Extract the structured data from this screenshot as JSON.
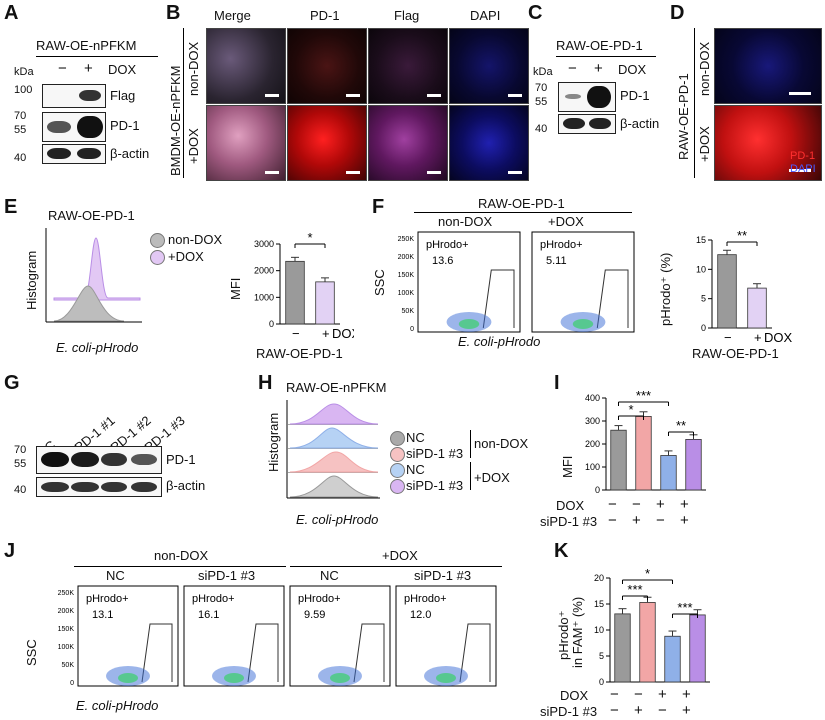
{
  "panels": [
    "A",
    "B",
    "C",
    "D",
    "E",
    "F",
    "G",
    "H",
    "I",
    "J",
    "K"
  ],
  "A": {
    "title": "RAW-OE-nPFKM",
    "kda": "kDa",
    "minus": "−",
    "plus": "+",
    "dox": "DOX",
    "mw": [
      "100",
      "70",
      "55",
      "40"
    ],
    "labels": [
      "Flag",
      "PD-1",
      "β-actin"
    ]
  },
  "B": {
    "cols": [
      "Merge",
      "PD-1",
      "Flag",
      "DAPI"
    ],
    "rowlabel": "BMDM-OE-nPFKM",
    "rows": [
      "non-DOX",
      "+DOX"
    ]
  },
  "C": {
    "title": "RAW-OE-PD-1",
    "kda": "kDa",
    "minus": "−",
    "plus": "+",
    "dox": "DOX",
    "mw": [
      "70",
      "55",
      "40"
    ],
    "labels": [
      "PD-1",
      "β-actin"
    ]
  },
  "D": {
    "rowlabel": "RAW-OE-PD-1",
    "rows": [
      "non-DOX",
      "+DOX"
    ],
    "legend": [
      "PD-1",
      "DAPI"
    ]
  },
  "E": {
    "title": "RAW-OE-PD-1",
    "ylabel": "Histogram",
    "xlabel": "E. coli-pHrodo",
    "legend": [
      "non-DOX",
      "+DOX"
    ],
    "barylabel": "MFI",
    "bargroup": "RAW-OE-PD-1",
    "sig": "*",
    "minus": "−",
    "plus": "+",
    "dox": "DOX"
  },
  "F": {
    "title": "RAW-OE-PD-1",
    "groups": [
      "non-DOX",
      "+DOX"
    ],
    "ylabel": "SSC",
    "xlabel": "E. coli-pHrodo",
    "gate": "pHrodo+",
    "pct": [
      "13.6",
      "5.11"
    ],
    "yticks": [
      "250K",
      "200K",
      "150K",
      "100K",
      "50K",
      "0"
    ],
    "barylabel": "pHrodo⁺ (%)",
    "bargroup": "RAW-OE-PD-1",
    "sig": "**",
    "minus": "−",
    "plus": "+",
    "dox": "DOX"
  },
  "G": {
    "lanes": [
      "NC",
      "siPD-1 #1",
      "siPD-1 #2",
      "siPD-1 #3"
    ],
    "mw": [
      "70",
      "55",
      "40"
    ],
    "labels": [
      "PD-1",
      "β-actin"
    ]
  },
  "H": {
    "title": "RAW-OE-nPFKM",
    "ylabel": "Histogram",
    "xlabel": "E. coli-pHrodo",
    "legend": [
      "NC",
      "siPD-1 #3",
      "NC",
      "siPD-1 #3"
    ],
    "groups": [
      "non-DOX",
      "+DOX"
    ]
  },
  "I": {
    "ylabel": "MFI",
    "sig": [
      "***",
      "*",
      "**"
    ],
    "rows": [
      "DOX",
      "siPD-1 #3"
    ],
    "signs": [
      [
        "−",
        "−",
        "+",
        "+"
      ],
      [
        "−",
        "+",
        "−",
        "+"
      ]
    ]
  },
  "J": {
    "groups": [
      "non-DOX",
      "+DOX"
    ],
    "cols": [
      "NC",
      "siPD-1 #3",
      "NC",
      "siPD-1 #3"
    ],
    "gate": "pHrodo+",
    "pct": [
      "13.1",
      "16.1",
      "9.59",
      "12.0"
    ],
    "ylabel": "SSC",
    "xlabel": "E. coli-pHrodo",
    "yticks": [
      "250K",
      "200K",
      "150K",
      "100K",
      "50K",
      "0"
    ]
  },
  "K": {
    "ylabel": "pHrodo⁺",
    "ylabel2": "in FAM⁺ (%)",
    "sig": [
      "*",
      "***",
      "***"
    ],
    "rows": [
      "DOX",
      "siPD-1 #3"
    ],
    "signs": [
      [
        "−",
        "−",
        "+",
        "+"
      ],
      [
        "−",
        "+",
        "−",
        "+"
      ]
    ]
  },
  "chart_data": [
    {
      "type": "bar",
      "panel": "E",
      "categories": [
        "− DOX",
        "+ DOX"
      ],
      "values": [
        2350,
        1580
      ],
      "ylim": [
        0,
        3000
      ],
      "yticks": [
        "0",
        "1000",
        "2000",
        "3000"
      ],
      "ylabel": "MFI",
      "colors": [
        "#9a9a9a",
        "#e2d2f4"
      ]
    },
    {
      "type": "bar",
      "panel": "F",
      "categories": [
        "− DOX",
        "+ DOX"
      ],
      "values": [
        12.5,
        6.8
      ],
      "ylim": [
        0,
        15
      ],
      "yticks": [
        "0",
        "5",
        "10",
        "15"
      ],
      "ylabel": "pHrodo+ (%)",
      "colors": [
        "#9a9a9a",
        "#e2d2f4"
      ]
    },
    {
      "type": "bar",
      "panel": "I",
      "categories": [
        "NC non-DOX",
        "siPD-1 #3 non-DOX",
        "NC +DOX",
        "siPD-1 #3 +DOX"
      ],
      "values": [
        260,
        320,
        150,
        220
      ],
      "ylim": [
        0,
        400
      ],
      "yticks": [
        "0",
        "100",
        "200",
        "300",
        "400"
      ],
      "ylabel": "MFI",
      "colors": [
        "#9a9a9a",
        "#f2a6a6",
        "#8fb0e8",
        "#b98ee6"
      ]
    },
    {
      "type": "bar",
      "panel": "K",
      "categories": [
        "NC non-DOX",
        "siPD-1 #3 non-DOX",
        "NC +DOX",
        "siPD-1 #3 +DOX"
      ],
      "values": [
        13.1,
        15.3,
        8.8,
        12.9
      ],
      "ylim": [
        0,
        20
      ],
      "yticks": [
        "0",
        "5",
        "10",
        "15",
        "20"
      ],
      "ylabel": "pHrodo+ in FAM+ (%)",
      "colors": [
        "#9a9a9a",
        "#f2a6a6",
        "#8fb0e8",
        "#b98ee6"
      ]
    }
  ]
}
